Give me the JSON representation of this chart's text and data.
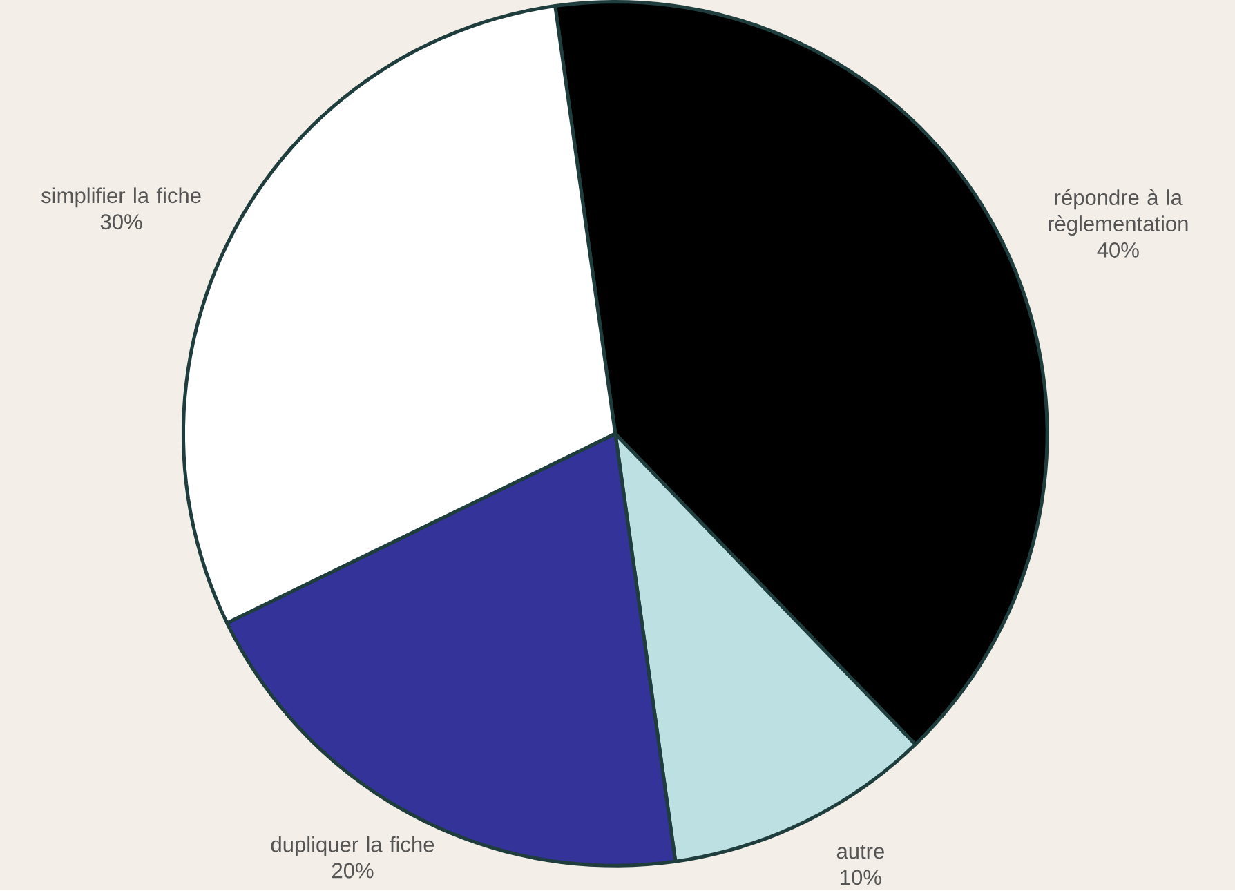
{
  "chart_data": {
    "type": "pie",
    "categories": [
      "répondre à la règlementation",
      "autre",
      "dupliquer la fiche",
      "simplifier la fiche"
    ],
    "values": [
      40,
      10,
      20,
      30
    ],
    "value_labels": [
      "40%",
      "10%",
      "20%",
      "30%"
    ],
    "colors": [
      "#000000",
      "#bde0e2",
      "#333399",
      "#ffffff"
    ]
  }
}
